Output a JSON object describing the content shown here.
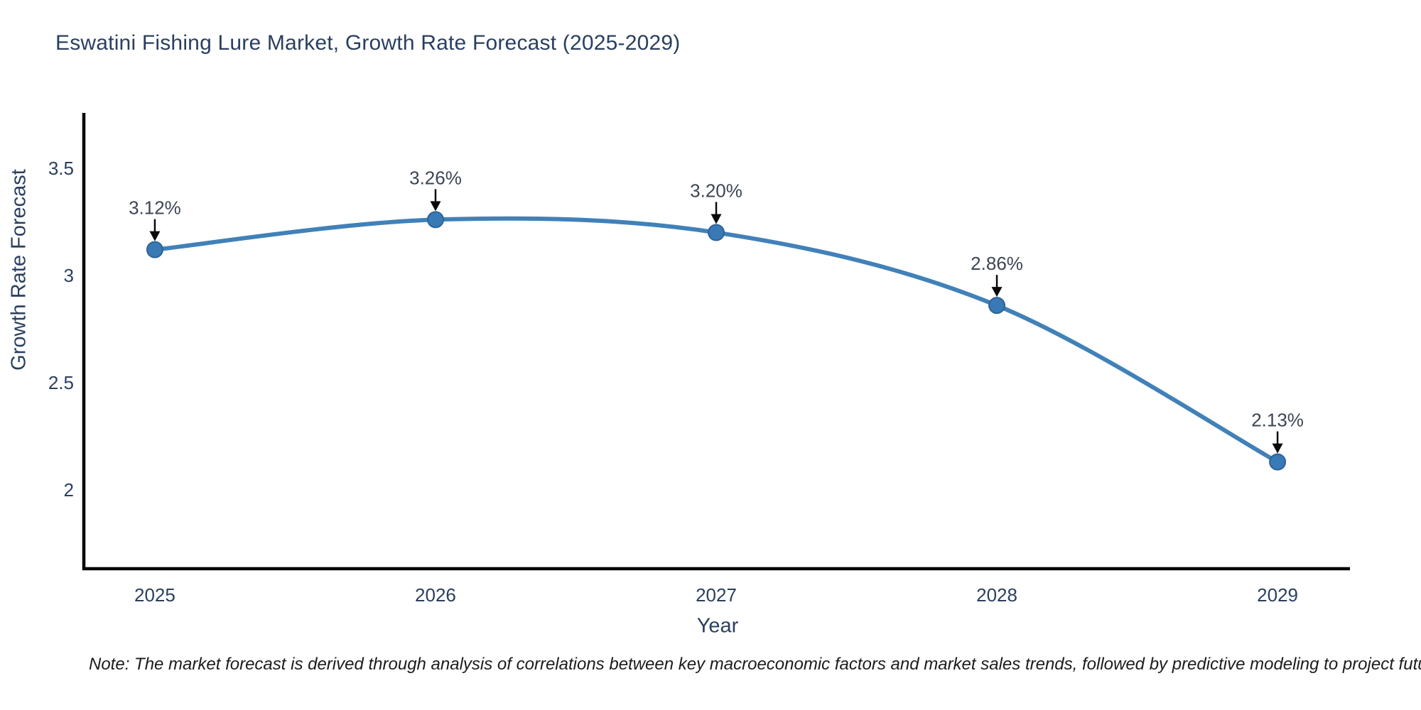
{
  "page": {
    "background": "#ffffff"
  },
  "note": "Note: The market forecast is derived through analysis of correlations between key macroeconomic factors and market sales trends, followed by predictive modeling to project future sales",
  "chart_data": {
    "type": "line",
    "title": "Eswatini Fishing Lure Market, Growth Rate Forecast (2025-2029)",
    "xlabel": "Year",
    "ylabel": "Growth Rate Forecast",
    "x": [
      2025,
      2026,
      2027,
      2028,
      2029
    ],
    "values": [
      3.12,
      3.26,
      3.2,
      2.86,
      2.13
    ],
    "point_labels": [
      "3.12%",
      "3.26%",
      "3.20%",
      "2.86%",
      "2.13%"
    ],
    "xticks": [
      2025,
      2026,
      2027,
      2028,
      2029
    ],
    "yticks": [
      2,
      2.5,
      3,
      3.5
    ],
    "xlim": [
      2024.747,
      2029.258
    ],
    "ylim": [
      1.632,
      3.758
    ],
    "grid": false,
    "legend": "none",
    "line_shape": "spline",
    "annotations_have_arrows": true,
    "colors": {
      "line": "#4181b8",
      "marker_fill": "#3a7ab4",
      "marker_edge": "#2c6399",
      "axis_line": "#000000",
      "tick_text": "#2a3f5f",
      "annotation_text": "#3d4552",
      "arrow": "#0a0a0a",
      "title_text": "#2a3f5f"
    }
  }
}
